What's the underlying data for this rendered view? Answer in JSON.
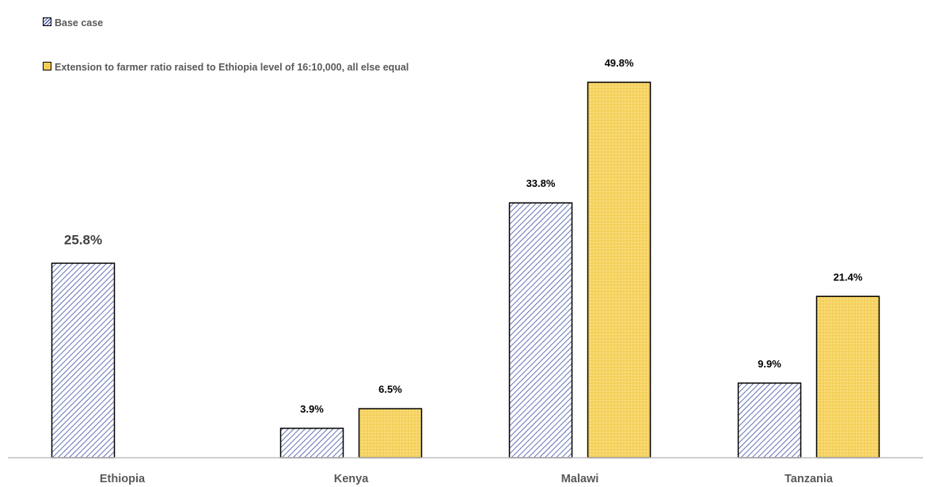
{
  "chart_data": {
    "type": "bar",
    "categories": [
      "Ethiopia",
      "Kenya",
      "Malawi",
      "Tanzania"
    ],
    "series": [
      {
        "name": "Base case",
        "values": [
          25.8,
          3.9,
          33.8,
          9.9
        ],
        "labels": [
          "25.8%",
          "3.9%",
          "33.8%",
          "9.9%"
        ]
      },
      {
        "name": "Extension to farmer ratio raised to Ethiopia level of 16:10,000, all else equal",
        "values": [
          null,
          6.5,
          49.8,
          21.4
        ],
        "labels": [
          "",
          "6.5%",
          "49.8%",
          "21.4%"
        ]
      }
    ],
    "ylim": [
      0,
      55
    ],
    "unit": "%",
    "legend_position": "top-left",
    "grid": false,
    "colors": {
      "base": "#3a50a0",
      "extension": "#f2c94c",
      "outline": "#000000",
      "axis": "#bfbfbf",
      "label": "#595959"
    }
  }
}
